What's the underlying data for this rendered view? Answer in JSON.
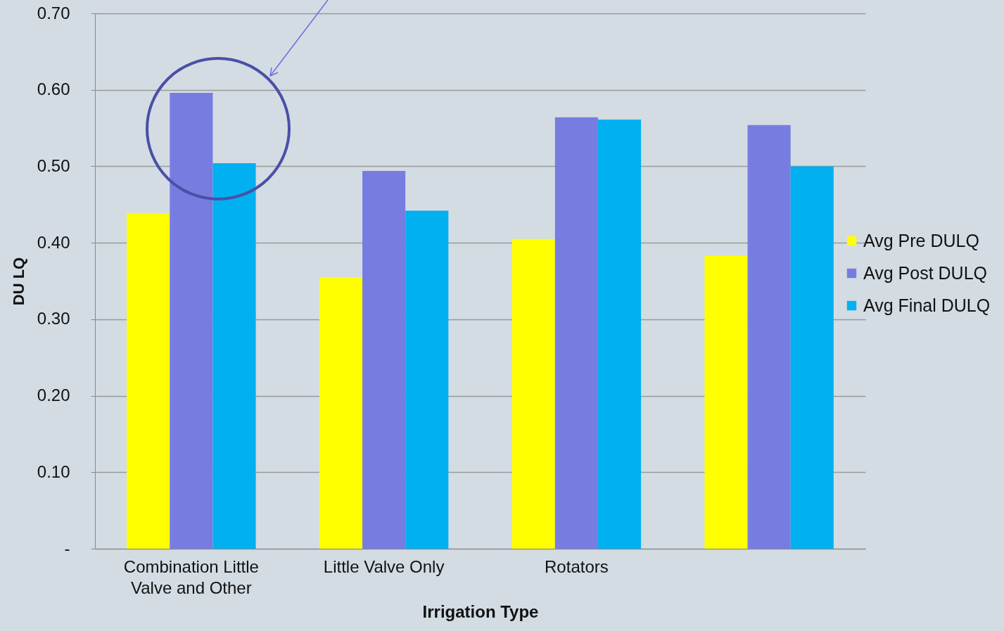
{
  "chart_data": {
    "type": "bar",
    "xlabel": "Irrigation Type",
    "ylabel": "DU LQ",
    "categories": [
      "Combination Little Valve and Other",
      "Little Valve Only",
      "Rotators",
      null
    ],
    "series": [
      {
        "name": "Avg Pre DULQ",
        "color": "#ffff00",
        "values": [
          0.438,
          0.355,
          0.405,
          0.383
        ]
      },
      {
        "name": "Avg Post DULQ",
        "color": "#777de0",
        "values": [
          0.596,
          0.494,
          0.564,
          0.554
        ]
      },
      {
        "name": "Avg Final DULQ",
        "color": "#00b0f0",
        "values": [
          0.504,
          0.442,
          0.561,
          0.5
        ]
      }
    ],
    "ylim": [
      0,
      0.7
    ],
    "yticks": [
      {
        "value": 0,
        "label": "-"
      },
      {
        "value": 0.1,
        "label": "0.10"
      },
      {
        "value": 0.2,
        "label": "0.20"
      },
      {
        "value": 0.3,
        "label": "0.30"
      },
      {
        "value": 0.4,
        "label": "0.40"
      },
      {
        "value": 0.5,
        "label": "0.50"
      },
      {
        "value": 0.6,
        "label": "0.60"
      },
      {
        "value": 0.7,
        "label": "0.70"
      }
    ],
    "grid": "y",
    "legend": "right"
  }
}
